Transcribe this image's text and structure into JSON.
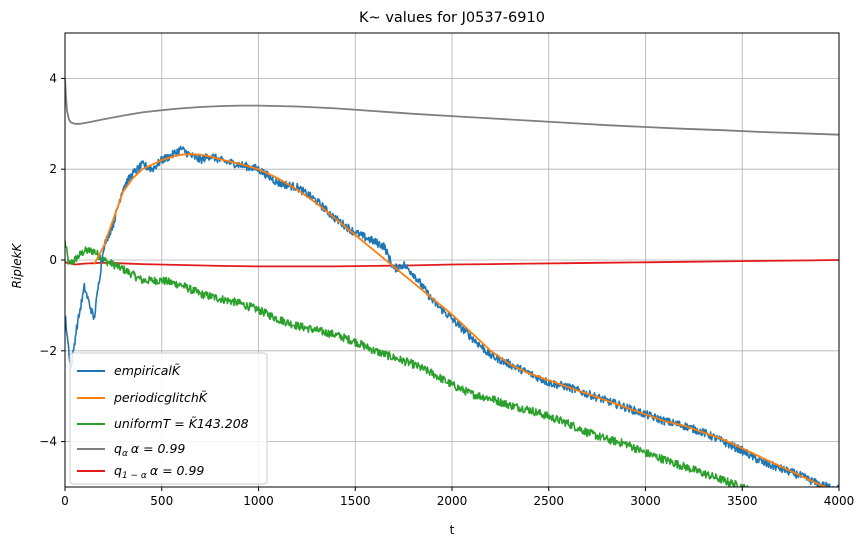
{
  "chart_data": {
    "type": "line",
    "title": "K~ values for J0537-6910",
    "xlabel": "t",
    "ylabel": "RiplekK",
    "xlim": [
      0,
      4000
    ],
    "ylim": [
      -5,
      5
    ],
    "xticks": [
      0,
      500,
      1000,
      1500,
      2000,
      2500,
      3000,
      3500,
      4000
    ],
    "xtick_labels": [
      "0",
      "500",
      "1000",
      "1500",
      "2000",
      "2500",
      "3000",
      "3500",
      "4000"
    ],
    "yticks": [
      -4,
      -2,
      0,
      2,
      4
    ],
    "ytick_labels": [
      "−4",
      "−2",
      "0",
      "2",
      "4"
    ],
    "grid": true,
    "legend_position": "lower-left",
    "series": [
      {
        "name": "empiricalK̃",
        "color": "#1f77b4",
        "noisy": true,
        "x": [
          0,
          30,
          60,
          100,
          150,
          200,
          250,
          300,
          350,
          400,
          450,
          500,
          550,
          600,
          650,
          700,
          750,
          800,
          900,
          1000,
          1100,
          1200,
          1300,
          1400,
          1500,
          1600,
          1650,
          1700,
          1750,
          1800,
          1850,
          1900,
          2000,
          2100,
          2200,
          2300,
          2400,
          2500,
          2600,
          2700,
          2800,
          2900,
          3000,
          3100,
          3200,
          3300,
          3400,
          3500,
          3600,
          3700,
          3800,
          3900,
          4000
        ],
        "y": [
          -1.2,
          -2.4,
          -1.5,
          -0.6,
          -1.3,
          0.3,
          0.8,
          1.6,
          1.9,
          2.1,
          2.0,
          2.2,
          2.3,
          2.45,
          2.3,
          2.2,
          2.3,
          2.2,
          2.1,
          2.0,
          1.7,
          1.6,
          1.3,
          0.9,
          0.6,
          0.4,
          0.3,
          -0.2,
          -0.1,
          -0.3,
          -0.6,
          -0.9,
          -1.3,
          -1.7,
          -2.1,
          -2.3,
          -2.5,
          -2.7,
          -2.8,
          -2.95,
          -3.1,
          -3.25,
          -3.4,
          -3.55,
          -3.65,
          -3.8,
          -4.0,
          -4.2,
          -4.45,
          -4.6,
          -4.75,
          -4.95,
          -5.05
        ]
      },
      {
        "name": "periodicglitchK̃",
        "color": "#ff7f0e",
        "noisy": false,
        "x": [
          150,
          200,
          250,
          300,
          350,
          400,
          450,
          500,
          550,
          600,
          650,
          700,
          750,
          800,
          900,
          1000,
          1100,
          1200,
          1300,
          1400,
          1500,
          1600,
          1700,
          1800,
          1900,
          2000,
          2100,
          2200,
          2300,
          2400,
          2500,
          2600,
          2700,
          2800,
          2900,
          3000,
          3100,
          3200,
          3300,
          3400,
          3500,
          3600,
          3700,
          3800,
          3900,
          4000
        ],
        "y": [
          -0.1,
          0.3,
          0.9,
          1.5,
          1.8,
          2.0,
          2.1,
          2.2,
          2.27,
          2.32,
          2.33,
          2.32,
          2.28,
          2.22,
          2.12,
          2.0,
          1.8,
          1.55,
          1.25,
          0.9,
          0.55,
          0.2,
          -0.15,
          -0.5,
          -0.85,
          -1.2,
          -1.6,
          -2.0,
          -2.3,
          -2.5,
          -2.65,
          -2.8,
          -2.95,
          -3.1,
          -3.25,
          -3.4,
          -3.55,
          -3.65,
          -3.8,
          -3.95,
          -4.15,
          -4.35,
          -4.55,
          -4.75,
          -4.95,
          -5.1
        ]
      },
      {
        "name": "uniformT=K̃143.208",
        "color": "#2ca02c",
        "noisy": true,
        "x": [
          0,
          20,
          50,
          100,
          150,
          200,
          300,
          400,
          500,
          600,
          700,
          800,
          900,
          1000,
          1100,
          1200,
          1300,
          1400,
          1500,
          1600,
          1700,
          1800,
          1900,
          2000,
          2100,
          2200,
          2300,
          2400,
          2500,
          2600,
          2700,
          2800,
          2900,
          3000,
          3100,
          3200,
          3300,
          3400,
          3500,
          3550
        ],
        "y": [
          0.4,
          -0.1,
          0.0,
          0.2,
          0.2,
          0.0,
          -0.2,
          -0.45,
          -0.45,
          -0.55,
          -0.75,
          -0.85,
          -0.95,
          -1.1,
          -1.3,
          -1.45,
          -1.55,
          -1.65,
          -1.8,
          -2.0,
          -2.15,
          -2.3,
          -2.5,
          -2.75,
          -2.95,
          -3.05,
          -3.2,
          -3.3,
          -3.45,
          -3.6,
          -3.8,
          -3.95,
          -4.05,
          -4.25,
          -4.4,
          -4.55,
          -4.7,
          -4.85,
          -5.0,
          -5.1
        ]
      },
      {
        "name": "q_α α=0.99",
        "color": "#7f7f7f",
        "noisy": false,
        "x": [
          0,
          5,
          10,
          20,
          30,
          50,
          80,
          120,
          200,
          300,
          400,
          500,
          600,
          700,
          800,
          900,
          1000,
          1200,
          1400,
          1600,
          1800,
          2000,
          2200,
          2400,
          2600,
          2800,
          3000,
          3200,
          3400,
          3600,
          3800,
          4000
        ],
        "y": [
          4.0,
          3.6,
          3.3,
          3.1,
          3.03,
          3.0,
          3.0,
          3.03,
          3.1,
          3.18,
          3.25,
          3.3,
          3.34,
          3.37,
          3.39,
          3.4,
          3.4,
          3.38,
          3.34,
          3.28,
          3.22,
          3.17,
          3.12,
          3.07,
          3.02,
          2.97,
          2.93,
          2.89,
          2.86,
          2.82,
          2.79,
          2.76
        ]
      },
      {
        "name": "q_{1−α} α=0.99",
        "color": "#e41a1c",
        "noisy": false,
        "x": [
          0,
          50,
          100,
          200,
          400,
          600,
          800,
          1000,
          1200,
          1400,
          1600,
          1800,
          2000,
          2200,
          2400,
          2600,
          2800,
          3000,
          3200,
          3400,
          3600,
          3800,
          4000
        ],
        "y": [
          -0.05,
          -0.1,
          -0.08,
          -0.06,
          -0.09,
          -0.11,
          -0.13,
          -0.14,
          -0.14,
          -0.14,
          -0.13,
          -0.12,
          -0.1,
          -0.09,
          -0.08,
          -0.07,
          -0.06,
          -0.05,
          -0.04,
          -0.03,
          -0.02,
          -0.01,
          0.0
        ]
      }
    ]
  },
  "legend": {
    "items": [
      {
        "label_main": "empirical",
        "label_sym": "K̃",
        "color": "#1f77b4"
      },
      {
        "label_main": "periodicglitch",
        "label_sym": "K̃",
        "color": "#ff7f0e"
      },
      {
        "label_main": "uniformT = K̃143.208",
        "label_sym": "",
        "color": "#2ca02c"
      },
      {
        "label_main": "q",
        "label_sub": "α",
        "label_rest": "α = 0.99",
        "color": "#7f7f7f"
      },
      {
        "label_main": "q",
        "label_sub": "1 − α",
        "label_rest": "α = 0.99",
        "color": "#e41a1c"
      }
    ]
  }
}
